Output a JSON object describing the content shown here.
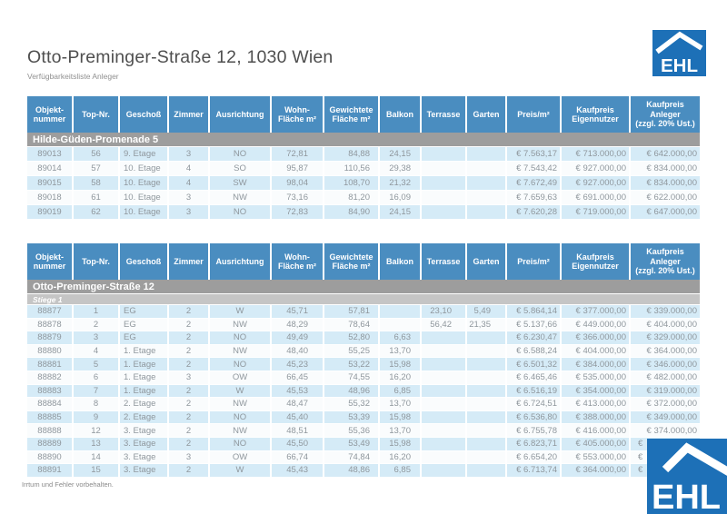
{
  "page": {
    "title": "Otto-Preminger-Straße 12, 1030 Wien",
    "subtitle": "Verfügbarkeitsliste Anleger",
    "footer": "Irrtum und Fehler vorbehalten.",
    "brand": "EHL"
  },
  "colors": {
    "header_blue": "#4a8dc0",
    "row_stripe_blue": "#d5ebf7",
    "section_gray": "#9d9d9d",
    "subsection_gray": "#c5c5c5",
    "logo_blue": "#1d70b7"
  },
  "columns": [
    "Objekt-\nnummer",
    "Top-Nr.",
    "Geschoß",
    "Zimmer",
    "Ausrichtung",
    "Wohn-\nFläche m²",
    "Gewichtete\nFläche m²",
    "Balkon",
    "Terrasse",
    "Garten",
    "Preis/m²",
    "Kaufpreis\nEigennutzer",
    "Kaufpreis\nAnleger\n(zzgl. 20% Ust.)"
  ],
  "tables": [
    {
      "sections": [
        {
          "title": "Hilde-Güden-Promenade 5",
          "subtitle": null,
          "rows": [
            [
              "89013",
              "56",
              "9. Etage",
              "3",
              "NO",
              "72,81",
              "84,88",
              "24,15",
              "",
              "",
              "€ 7.563,17",
              "€ 713.000,00",
              "€ 642.000,00"
            ],
            [
              "89014",
              "57",
              "10. Etage",
              "4",
              "SO",
              "95,87",
              "110,56",
              "29,38",
              "",
              "",
              "€ 7.543,42",
              "€ 927.000,00",
              "€ 834.000,00"
            ],
            [
              "89015",
              "58",
              "10. Etage",
              "4",
              "SW",
              "98,04",
              "108,70",
              "21,32",
              "",
              "",
              "€ 7.672,49",
              "€ 927.000,00",
              "€ 834.000,00"
            ],
            [
              "89018",
              "61",
              "10. Etage",
              "3",
              "NW",
              "73,16",
              "81,20",
              "16,09",
              "",
              "",
              "€ 7.659,63",
              "€ 691.000,00",
              "€ 622.000,00"
            ],
            [
              "89019",
              "62",
              "10. Etage",
              "3",
              "NO",
              "72,83",
              "84,90",
              "24,15",
              "",
              "",
              "€ 7.620,28",
              "€ 719.000,00",
              "€ 647.000,00"
            ]
          ]
        }
      ]
    },
    {
      "sections": [
        {
          "title": "Otto-Preminger-Straße 12",
          "subtitle": "Stiege 1",
          "rows": [
            [
              "88877",
              "1",
              "EG",
              "2",
              "W",
              "45,71",
              "57,81",
              "",
              "23,10",
              "5,49",
              "€ 5.864,14",
              "€ 377.000,00",
              "€ 339.000,00"
            ],
            [
              "88878",
              "2",
              "EG",
              "2",
              "NW",
              "48,29",
              "78,64",
              "",
              "56,42",
              "21,35",
              "€ 5.137,66",
              "€ 449.000,00",
              "€ 404.000,00"
            ],
            [
              "88879",
              "3",
              "EG",
              "2",
              "NO",
              "49,49",
              "52,80",
              "6,63",
              "",
              "",
              "€ 6.230,47",
              "€ 366.000,00",
              "€ 329.000,00"
            ],
            [
              "88880",
              "4",
              "1. Etage",
              "2",
              "NW",
              "48,40",
              "55,25",
              "13,70",
              "",
              "",
              "€ 6.588,24",
              "€ 404.000,00",
              "€ 364.000,00"
            ],
            [
              "88881",
              "5",
              "1. Etage",
              "2",
              "NO",
              "45,23",
              "53,22",
              "15,98",
              "",
              "",
              "€ 6.501,32",
              "€ 384.000,00",
              "€ 346.000,00"
            ],
            [
              "88882",
              "6",
              "1. Etage",
              "3",
              "OW",
              "66,45",
              "74,55",
              "16,20",
              "",
              "",
              "€ 6.465,46",
              "€ 535.000,00",
              "€ 482.000,00"
            ],
            [
              "88883",
              "7",
              "1. Etage",
              "2",
              "W",
              "45,53",
              "48,96",
              "6,85",
              "",
              "",
              "€ 6.516,19",
              "€ 354.000,00",
              "€ 319.000,00"
            ],
            [
              "88884",
              "8",
              "2. Etage",
              "2",
              "NW",
              "48,47",
              "55,32",
              "13,70",
              "",
              "",
              "€ 6.724,51",
              "€ 413.000,00",
              "€ 372.000,00"
            ],
            [
              "88885",
              "9",
              "2. Etage",
              "2",
              "NO",
              "45,40",
              "53,39",
              "15,98",
              "",
              "",
              "€ 6.536,80",
              "€ 388.000,00",
              "€ 349.000,00"
            ],
            [
              "88888",
              "12",
              "3. Etage",
              "2",
              "NW",
              "48,51",
              "55,36",
              "13,70",
              "",
              "",
              "€ 6.755,78",
              "€ 416.000,00",
              "€ 374.000,00"
            ],
            [
              "88889",
              "13",
              "3. Etage",
              "2",
              "NO",
              "45,50",
              "53,49",
              "15,98",
              "",
              "",
              "€ 6.823,71",
              "€ 405.000,00",
              "€"
            ],
            [
              "88890",
              "14",
              "3. Etage",
              "3",
              "OW",
              "66,74",
              "74,84",
              "16,20",
              "",
              "",
              "€ 6.654,20",
              "€ 553.000,00",
              "€"
            ],
            [
              "88891",
              "15",
              "3. Etage",
              "2",
              "W",
              "45,43",
              "48,86",
              "6,85",
              "",
              "",
              "€ 6.713,74",
              "€ 364.000,00",
              "€"
            ]
          ]
        }
      ]
    }
  ]
}
